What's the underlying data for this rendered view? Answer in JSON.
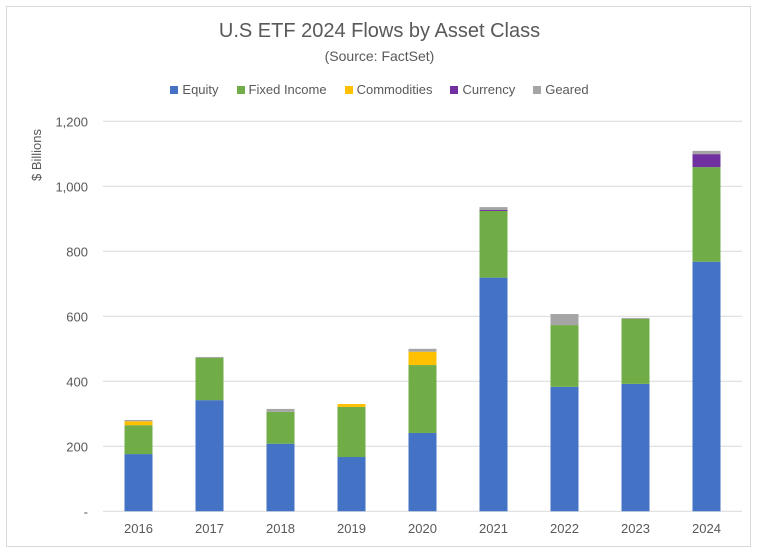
{
  "chart_data": {
    "type": "bar",
    "stacked": true,
    "title": "U.S ETF 2024 Flows by Asset Class",
    "subtitle": "(Source: FactSet)",
    "xlabel": "",
    "ylabel": "$ Billions",
    "ylim": [
      0,
      1200
    ],
    "yticks": [
      0,
      200,
      400,
      600,
      800,
      1000,
      1200
    ],
    "ytick_labels": [
      "-",
      "200",
      "400",
      "600",
      "800",
      "1,000",
      "1,200"
    ],
    "grid": true,
    "legend": "top",
    "categories": [
      "2016",
      "2017",
      "2018",
      "2019",
      "2020",
      "2021",
      "2022",
      "2023",
      "2024"
    ],
    "series": [
      {
        "name": "Equity",
        "color": "#4472c4",
        "values": [
          176,
          342,
          208,
          167,
          241,
          719,
          383,
          392,
          768
        ]
      },
      {
        "name": "Fixed Income",
        "color": "#70ad47",
        "values": [
          89,
          130,
          98,
          154,
          209,
          205,
          190,
          200,
          291
        ]
      },
      {
        "name": "Commodities",
        "color": "#ffc000",
        "values": [
          12,
          0,
          0,
          9,
          41,
          0,
          0,
          0,
          0
        ]
      },
      {
        "name": "Currency",
        "color": "#7030a0",
        "values": [
          0,
          0,
          0,
          0,
          0,
          3,
          0,
          0,
          40
        ]
      },
      {
        "name": "Geared",
        "color": "#a5a5a5",
        "values": [
          4,
          3,
          9,
          0,
          9,
          9,
          34,
          3,
          10
        ]
      }
    ]
  }
}
